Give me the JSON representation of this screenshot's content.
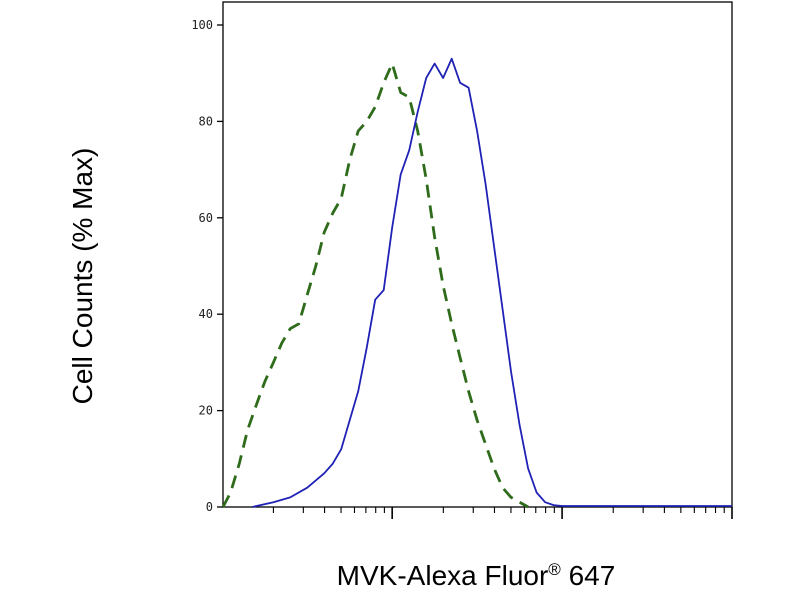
{
  "chart_data": {
    "type": "line",
    "xlabel": "MVK-Alexa Fluor",
    "xlabel_superscript": "®",
    "xlabel_suffix": "647",
    "ylabel": "Cell Counts (% Max)",
    "x_scale": "log",
    "xlim": [
      101,
      100000
    ],
    "ylim": [
      0,
      100
    ],
    "yticks": [
      0,
      20,
      40,
      60,
      80,
      100
    ],
    "ytick_labels": [
      "0",
      "20",
      "40",
      "60",
      "80",
      "100"
    ],
    "grid": false,
    "legend": "none",
    "series": [
      {
        "style": "dashed",
        "color": "#2e6b1a",
        "x": [
          101,
          112,
          126,
          141,
          158,
          178,
          200,
          224,
          251,
          282,
          316,
          355,
          398,
          447,
          501,
          562,
          631,
          708,
          794,
          891,
          1000,
          1122,
          1259,
          1413,
          1585,
          1778,
          1995,
          2239,
          2512,
          2818,
          3162,
          3548,
          3981,
          4467,
          5012,
          5623,
          6310
        ],
        "y": [
          0,
          3,
          9,
          16,
          21,
          26,
          30,
          34,
          37,
          38,
          44,
          50,
          57,
          61,
          64,
          72,
          78,
          80,
          83,
          88,
          92,
          86,
          85,
          78,
          68,
          56,
          46,
          38,
          31,
          24,
          18,
          13,
          8,
          4,
          2,
          1,
          0
        ]
      },
      {
        "style": "solid",
        "color": "#1f22b5",
        "x": [
          150,
          200,
          251,
          316,
          398,
          447,
          501,
          562,
          631,
          708,
          794,
          891,
          1000,
          1122,
          1259,
          1413,
          1585,
          1778,
          1995,
          2239,
          2512,
          2818,
          3162,
          3548,
          3981,
          4467,
          5012,
          5623,
          6310,
          7079,
          7943,
          8913,
          10000,
          15849,
          25119,
          39811,
          63096,
          100000
        ],
        "y": [
          0,
          1,
          2,
          4,
          7,
          9,
          12,
          18,
          24,
          33,
          43,
          45,
          58,
          69,
          74,
          82,
          89,
          92,
          89,
          93,
          88,
          87,
          78,
          67,
          54,
          41,
          28,
          17,
          8,
          3,
          1,
          0.4,
          0.2,
          0.2,
          0.2,
          0.2,
          0.2,
          0.2
        ]
      }
    ]
  }
}
